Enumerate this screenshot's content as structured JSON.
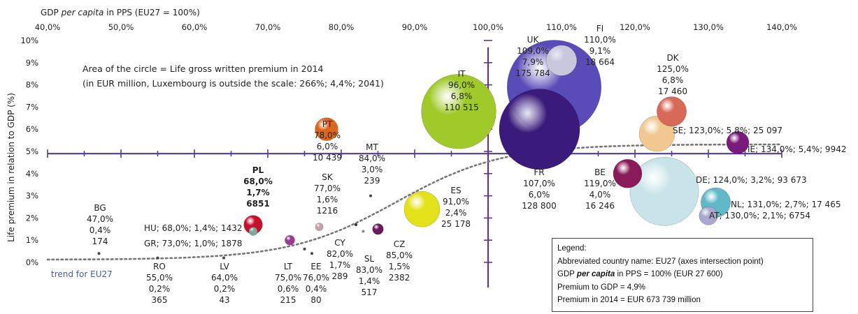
{
  "chart_data": {
    "type": "scatter",
    "title": "",
    "xlabel": "GDP per capita in PPS (EU27 = 100%)",
    "ylabel": "Life premium in relation to GDP (%)",
    "xlim": [
      40,
      140
    ],
    "ylim": [
      0,
      10
    ],
    "x_ticks": [
      "40,0%",
      "50,0%",
      "60,0%",
      "70,0%",
      "80,0%",
      "90,0%",
      "100,0%",
      "110,0%",
      "120,0%",
      "130,0%",
      "140,0%"
    ],
    "y_ticks": [
      "0%",
      "1%",
      "2%",
      "3%",
      "4%",
      "5%",
      "6%",
      "7%",
      "8%",
      "9%",
      "10%"
    ],
    "axes_intersection": {
      "x": 100,
      "y": 4.9
    },
    "annotation": [
      "Area of the circle = Life gross written premium in 2014",
      "(in EUR million, Luxembourg is outside the scale: 266%; 4,4%; 2041)"
    ],
    "trend_label": "trend for EU27",
    "points": [
      {
        "code": "BG",
        "x": 47.0,
        "y": 0.4,
        "premium": 174,
        "color": "#444444"
      },
      {
        "code": "RO",
        "x": 55.0,
        "y": 0.2,
        "premium": 365,
        "color": "#444444"
      },
      {
        "code": "LV",
        "x": 64.0,
        "y": 0.2,
        "premium": 43,
        "color": "#444444"
      },
      {
        "code": "HU",
        "x": 68.0,
        "y": 1.4,
        "premium": 1432,
        "color": "#7ba89a"
      },
      {
        "code": "GR",
        "x": 73.0,
        "y": 1.0,
        "premium": 1878,
        "color": "#9b3a8e"
      },
      {
        "code": "PL",
        "x": 68.0,
        "y": 1.7,
        "premium": 6851,
        "color": "#c8102e"
      },
      {
        "code": "LT",
        "x": 75.0,
        "y": 0.6,
        "premium": 215,
        "color": "#444444"
      },
      {
        "code": "EE",
        "x": 76.0,
        "y": 0.4,
        "premium": 80,
        "color": "#444444"
      },
      {
        "code": "SK",
        "x": 77.0,
        "y": 1.6,
        "premium": 1216,
        "color": "#c8a0a8"
      },
      {
        "code": "PT",
        "x": 78.0,
        "y": 6.0,
        "premium": 10439,
        "color": "#d9681e"
      },
      {
        "code": "CY",
        "x": 82.0,
        "y": 1.7,
        "premium": 289,
        "color": "#333333"
      },
      {
        "code": "SL",
        "x": 83.0,
        "y": 1.4,
        "premium": 517,
        "color": "#888888"
      },
      {
        "code": "MT",
        "x": 84.0,
        "y": 3.0,
        "premium": 239,
        "color": "#444444"
      },
      {
        "code": "CZ",
        "x": 85.0,
        "y": 1.5,
        "premium": 2382,
        "color": "#6a1a5e"
      },
      {
        "code": "ES",
        "x": 91.0,
        "y": 2.4,
        "premium": 25178,
        "color": "#e3e21a"
      },
      {
        "code": "IT",
        "x": 96.0,
        "y": 6.8,
        "premium": 110515,
        "color": "#9fca2a"
      },
      {
        "code": "FR",
        "x": 107.0,
        "y": 6.0,
        "premium": 128800,
        "color": "#3a1a7a"
      },
      {
        "code": "UK",
        "x": 109.0,
        "y": 7.9,
        "premium": 175784,
        "color": "#5a4cb8"
      },
      {
        "code": "FI",
        "x": 110.0,
        "y": 9.1,
        "premium": 18664,
        "color": "#c8c8dc"
      },
      {
        "code": "BE",
        "x": 119.0,
        "y": 4.0,
        "premium": 16246,
        "color": "#8a1a5a"
      },
      {
        "code": "SE",
        "x": 123.0,
        "y": 5.8,
        "premium": 25097,
        "color": "#f0c890"
      },
      {
        "code": "DE",
        "x": 124.0,
        "y": 3.2,
        "premium": 93673,
        "color": "#c8e4e8"
      },
      {
        "code": "DK",
        "x": 125.0,
        "y": 6.8,
        "premium": 17460,
        "color": "#d86858"
      },
      {
        "code": "AT",
        "x": 130.0,
        "y": 2.1,
        "premium": 6754,
        "color": "#a8a8d0"
      },
      {
        "code": "NL",
        "x": 131.0,
        "y": 2.7,
        "premium": 17465,
        "color": "#60b8c8"
      },
      {
        "code": "IE",
        "x": 134.0,
        "y": 5.4,
        "premium": 9942,
        "color": "#7a1a7a"
      }
    ],
    "labels": [
      {
        "code": "BG",
        "lines": [
          "BG",
          "47,0%",
          "0,4%",
          "174"
        ]
      },
      {
        "code": "RO",
        "lines": [
          "RO",
          "55,0%",
          "0,2%",
          "365"
        ]
      },
      {
        "code": "LV",
        "lines": [
          "LV",
          "64,0%",
          "0,2%",
          "43"
        ]
      },
      {
        "code": "HU",
        "lines": [
          "HU; 68,0%; 1,4%; 1432"
        ]
      },
      {
        "code": "GR",
        "lines": [
          "GR; 73,0%; 1,0%; 1878"
        ]
      },
      {
        "code": "PL",
        "lines": [
          "PL",
          "68,0%",
          "1,7%",
          "6851"
        ],
        "bold": true
      },
      {
        "code": "LT",
        "lines": [
          "LT",
          "75,0%",
          "0,6%",
          "215"
        ]
      },
      {
        "code": "EE",
        "lines": [
          "EE",
          "76,0%",
          "0,4%",
          "80"
        ]
      },
      {
        "code": "SK",
        "lines": [
          "SK",
          "77,0%",
          "1,6%",
          "1216"
        ]
      },
      {
        "code": "PT",
        "lines": [
          "PT",
          "78,0%",
          "6,0%",
          "10 439"
        ]
      },
      {
        "code": "CY",
        "lines": [
          "CY",
          "82,0%",
          "1,7%",
          "289"
        ]
      },
      {
        "code": "SL",
        "lines": [
          "SL",
          "83,0%",
          "1,4%",
          "517"
        ]
      },
      {
        "code": "MT",
        "lines": [
          "MT",
          "84,0%",
          "3,0%",
          "239"
        ]
      },
      {
        "code": "CZ",
        "lines": [
          "CZ",
          "85,0%",
          "1,5%",
          "2382"
        ]
      },
      {
        "code": "ES",
        "lines": [
          "ES",
          "91,0%",
          "2,4%",
          "25 178"
        ]
      },
      {
        "code": "IT",
        "lines": [
          "IT",
          "96,0%",
          "6,8%",
          "110 515"
        ]
      },
      {
        "code": "FR",
        "lines": [
          "FR",
          "107,0%",
          "6,0%",
          "128 800"
        ]
      },
      {
        "code": "UK",
        "lines": [
          "UK",
          "109,0%",
          "7,9%",
          "175 784"
        ]
      },
      {
        "code": "FI",
        "lines": [
          "FI",
          "110,0%",
          "9,1%",
          "18 664"
        ]
      },
      {
        "code": "BE",
        "lines": [
          "BE",
          "119,0%",
          "4,0%",
          "16 246"
        ]
      },
      {
        "code": "SE",
        "lines": [
          "SE; 123,0%; 5,8%;  25 097"
        ]
      },
      {
        "code": "DE",
        "lines": [
          "DE; 124,0%; 3,2%;  93 673"
        ]
      },
      {
        "code": "DK",
        "lines": [
          "DK",
          "125,0%",
          "6,8%",
          "17 460"
        ]
      },
      {
        "code": "AT",
        "lines": [
          "AT; 130,0%; 2,1%;  6754"
        ]
      },
      {
        "code": "NL",
        "lines": [
          "NL; 131,0%; 2,7%;  17 465"
        ]
      },
      {
        "code": "IE",
        "lines": [
          "IE; 134,0%; 5,4%;  9942"
        ]
      }
    ]
  },
  "legend": {
    "title": "Legend:",
    "line1": "Abbreviated country name: EU27 (axes intersection point)",
    "line2_pre": "GDP ",
    "line2_em": "per capita",
    "line2_post": " in PPS = 100% (EUR 27 600)",
    "line3": "Premium to GDP = 4,9%",
    "line4": "Premium in 2014 = EUR 673 739 million"
  }
}
